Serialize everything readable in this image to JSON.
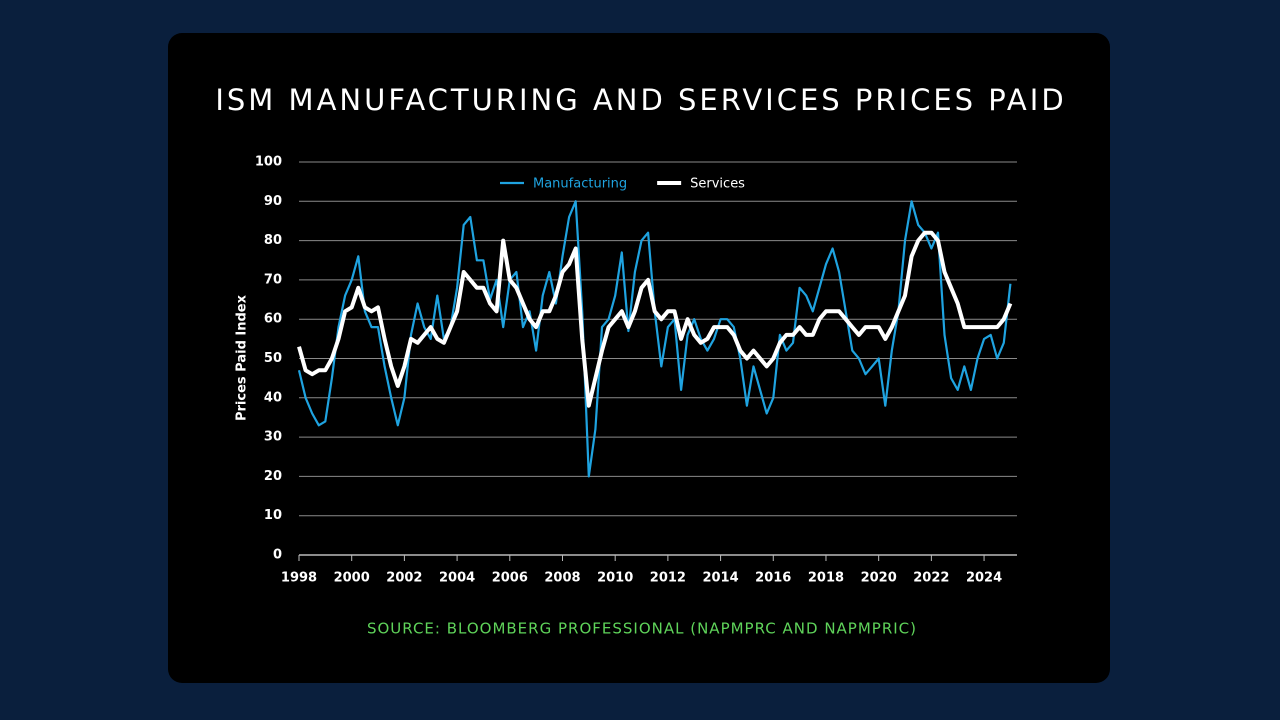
{
  "chart_data": {
    "type": "line",
    "title": "ISM MANUFACTURING AND SERVICES PRICES PAID",
    "y_label": "Prices Paid Index",
    "source": "SOURCE: BLOOMBERG PROFESSIONAL (NAPMPRC AND NAPMPRIC)",
    "x": [
      1998,
      1998.25,
      1998.5,
      1998.75,
      1999,
      1999.25,
      1999.5,
      1999.75,
      2000,
      2000.25,
      2000.5,
      2000.75,
      2001,
      2001.25,
      2001.5,
      2001.75,
      2002,
      2002.25,
      2002.5,
      2002.75,
      2003,
      2003.25,
      2003.5,
      2003.75,
      2004,
      2004.25,
      2004.5,
      2004.75,
      2005,
      2005.25,
      2005.5,
      2005.75,
      2006,
      2006.25,
      2006.5,
      2006.75,
      2007,
      2007.25,
      2007.5,
      2007.75,
      2008,
      2008.25,
      2008.5,
      2008.75,
      2009,
      2009.25,
      2009.5,
      2009.75,
      2010,
      2010.25,
      2010.5,
      2010.75,
      2011,
      2011.25,
      2011.5,
      2011.75,
      2012,
      2012.25,
      2012.5,
      2012.75,
      2013,
      2013.25,
      2013.5,
      2013.75,
      2014,
      2014.25,
      2014.5,
      2014.75,
      2015,
      2015.25,
      2015.5,
      2015.75,
      2016,
      2016.25,
      2016.5,
      2016.75,
      2017,
      2017.25,
      2017.5,
      2017.75,
      2018,
      2018.25,
      2018.5,
      2018.75,
      2019,
      2019.25,
      2019.5,
      2019.75,
      2020,
      2020.25,
      2020.5,
      2020.75,
      2021,
      2021.25,
      2021.5,
      2021.75,
      2022,
      2022.25,
      2022.5,
      2022.75,
      2023,
      2023.25,
      2023.5,
      2023.75,
      2024,
      2024.25,
      2024.5,
      2024.75,
      2025
    ],
    "series": [
      {
        "name": "Manufacturing",
        "color": "#1fa3e0",
        "width": 2.2,
        "values": [
          47,
          40,
          36,
          33,
          34,
          45,
          58,
          66,
          70,
          76,
          62,
          58,
          58,
          48,
          40,
          33,
          40,
          56,
          64,
          58,
          55,
          66,
          55,
          58,
          68,
          84,
          86,
          75,
          75,
          65,
          70,
          58,
          70,
          72,
          58,
          62,
          52,
          66,
          72,
          64,
          76,
          86,
          90,
          62,
          20,
          32,
          58,
          60,
          66,
          77,
          57,
          72,
          80,
          82,
          62,
          48,
          58,
          60,
          42,
          56,
          60,
          55,
          52,
          55,
          60,
          60,
          58,
          50,
          38,
          48,
          42,
          36,
          40,
          56,
          52,
          54,
          68,
          66,
          62,
          68,
          74,
          78,
          72,
          62,
          52,
          50,
          46,
          48,
          50,
          38,
          52,
          62,
          80,
          90,
          84,
          82,
          78,
          82,
          56,
          45,
          42,
          48,
          42,
          50,
          55,
          56,
          50,
          54,
          69
        ]
      },
      {
        "name": "Services",
        "color": "#ffffff",
        "width": 4,
        "values": [
          53,
          47,
          46,
          47,
          47,
          50,
          55,
          62,
          63,
          68,
          63,
          62,
          63,
          55,
          48,
          43,
          48,
          55,
          54,
          56,
          58,
          55,
          54,
          58,
          62,
          72,
          70,
          68,
          68,
          64,
          62,
          80,
          70,
          68,
          64,
          60,
          58,
          62,
          62,
          66,
          72,
          74,
          78,
          55,
          38,
          45,
          52,
          58,
          60,
          62,
          58,
          62,
          68,
          70,
          62,
          60,
          62,
          62,
          55,
          60,
          56,
          54,
          55,
          58,
          58,
          58,
          56,
          52,
          50,
          52,
          50,
          48,
          50,
          54,
          56,
          56,
          58,
          56,
          56,
          60,
          62,
          62,
          62,
          60,
          58,
          56,
          58,
          58,
          58,
          55,
          58,
          62,
          66,
          76,
          80,
          82,
          82,
          80,
          72,
          68,
          64,
          58,
          58,
          58,
          58,
          58,
          58,
          60,
          64
        ]
      }
    ],
    "xlim": [
      1998,
      2025.25
    ],
    "xticks": [
      1998,
      2000,
      2002,
      2004,
      2006,
      2008,
      2010,
      2012,
      2014,
      2016,
      2018,
      2020,
      2022,
      2024
    ],
    "ylim": [
      0,
      100
    ],
    "yticks": [
      0,
      10,
      20,
      30,
      40,
      50,
      60,
      70,
      80,
      90,
      100
    ],
    "grid": true
  }
}
